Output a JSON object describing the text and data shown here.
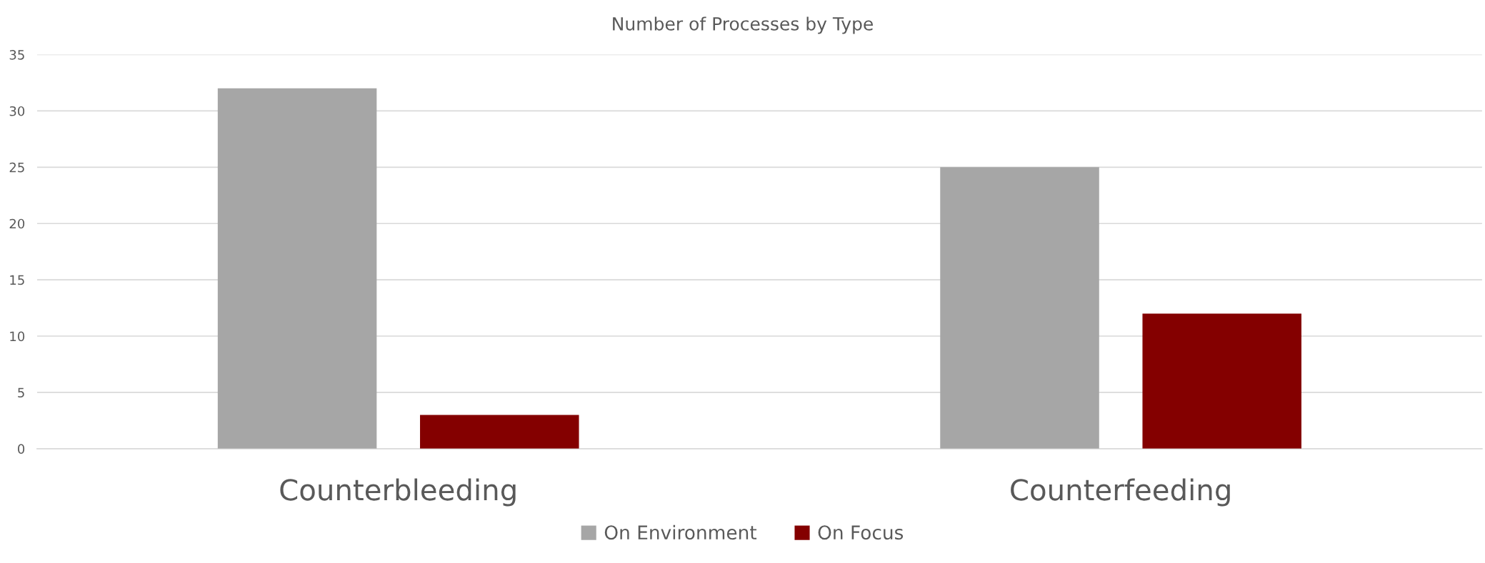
{
  "chart_data": {
    "type": "bar",
    "title": "Number of Processes by Type",
    "categories": [
      "Counterbleeding",
      "Counterfeeding"
    ],
    "series": [
      {
        "name": "On Environment",
        "color": "#a6a6a6",
        "values": [
          32,
          25
        ]
      },
      {
        "name": "On Focus",
        "color": "#840000",
        "values": [
          3,
          12
        ]
      }
    ],
    "ylim": [
      0,
      35
    ],
    "yticks": [
      0,
      5,
      10,
      15,
      20,
      25,
      30,
      35
    ],
    "grid": "y",
    "legend": "bottom"
  }
}
